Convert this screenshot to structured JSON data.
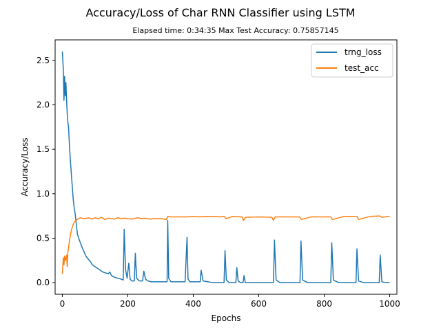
{
  "chart_data": {
    "type": "line",
    "title": "Accuracy/Loss of Char RNN Classifier using LSTM",
    "subtitle": "Elapsed time: 0:34:35   Max Test Accuracy: 0.75857145",
    "xlabel": "Epochs",
    "ylabel": "Accuracy/Loss",
    "xlim": [
      -22,
      1022
    ],
    "ylim": [
      -0.13,
      2.73
    ],
    "xticks": [
      0,
      200,
      400,
      600,
      800,
      1000
    ],
    "yticks": [
      0.0,
      0.5,
      1.0,
      1.5,
      2.0,
      2.5
    ],
    "xtick_labels": [
      "0",
      "200",
      "400",
      "600",
      "800",
      "1000"
    ],
    "ytick_labels": [
      "0.0",
      "0.5",
      "1.0",
      "1.5",
      "2.0",
      "2.5"
    ],
    "grid": false,
    "legend_position": "top-right",
    "colors": {
      "trng_loss": "#1f77b4",
      "test_acc": "#ff7f0e"
    },
    "series": [
      {
        "name": "trng_loss",
        "x": [
          0,
          3,
          5,
          7,
          9,
          11,
          13,
          15,
          17,
          19,
          21,
          24,
          27,
          30,
          33,
          36,
          39,
          42,
          46,
          50,
          55,
          60,
          66,
          72,
          78,
          85,
          92,
          100,
          108,
          116,
          124,
          132,
          140,
          145,
          150,
          160,
          170,
          180,
          186,
          189,
          193,
          198,
          203,
          207,
          212,
          220,
          223,
          227,
          235,
          245,
          249,
          254,
          262,
          272,
          285,
          300,
          313,
          320,
          322,
          325,
          332,
          345,
          360,
          375,
          381,
          384,
          390,
          400,
          415,
          421,
          424,
          430,
          445,
          460,
          480,
          494,
          497,
          501,
          510,
          520,
          530,
          533,
          537,
          545,
          552,
          555,
          559,
          570,
          600,
          620,
          640,
          645,
          648,
          653,
          665,
          690,
          720,
          726,
          729,
          734,
          750,
          780,
          810,
          820,
          823,
          828,
          845,
          870,
          890,
          897,
          900,
          905,
          920,
          950,
          968,
          971,
          976,
          990,
          1000
        ],
        "values": [
          2.6,
          2.4,
          2.05,
          2.32,
          2.1,
          2.25,
          2.05,
          1.9,
          1.8,
          1.75,
          1.6,
          1.4,
          1.25,
          1.1,
          0.95,
          0.85,
          0.78,
          0.68,
          0.55,
          0.5,
          0.45,
          0.4,
          0.35,
          0.3,
          0.27,
          0.24,
          0.2,
          0.18,
          0.16,
          0.14,
          0.12,
          0.11,
          0.1,
          0.12,
          0.08,
          0.06,
          0.05,
          0.04,
          0.03,
          0.6,
          0.15,
          0.05,
          0.22,
          0.04,
          0.02,
          0.02,
          0.33,
          0.05,
          0.02,
          0.02,
          0.13,
          0.04,
          0.02,
          0.01,
          0.01,
          0.01,
          0.01,
          0.01,
          0.7,
          0.05,
          0.01,
          0.01,
          0.01,
          0.01,
          0.51,
          0.04,
          0.01,
          0.01,
          0.01,
          0.01,
          0.14,
          0.02,
          0.01,
          0.0,
          0.0,
          0.0,
          0.36,
          0.03,
          0.0,
          0.0,
          0.0,
          0.17,
          0.02,
          0.0,
          0.0,
          0.08,
          0.0,
          0.0,
          0.0,
          0.0,
          0.0,
          0.0,
          0.48,
          0.03,
          0.0,
          0.0,
          0.0,
          0.0,
          0.47,
          0.03,
          0.0,
          0.0,
          0.0,
          0.0,
          0.45,
          0.03,
          0.0,
          0.0,
          0.0,
          0.0,
          0.38,
          0.02,
          0.0,
          0.0,
          0.0,
          0.31,
          0.01,
          0.0,
          0.0
        ]
      },
      {
        "name": "test_acc",
        "x": [
          0,
          3,
          5,
          7,
          9,
          11,
          13,
          15,
          17,
          20,
          23,
          26,
          30,
          34,
          38,
          42,
          46,
          50,
          55,
          60,
          70,
          80,
          90,
          100,
          110,
          120,
          130,
          140,
          150,
          160,
          170,
          180,
          190,
          200,
          210,
          220,
          230,
          240,
          250,
          260,
          270,
          280,
          290,
          300,
          310,
          318,
          322,
          330,
          350,
          380,
          400,
          420,
          440,
          460,
          480,
          495,
          500,
          520,
          550,
          553,
          560,
          600,
          640,
          645,
          650,
          700,
          725,
          730,
          760,
          800,
          820,
          825,
          860,
          900,
          905,
          940,
          970,
          975,
          1000
        ],
        "values": [
          0.1,
          0.28,
          0.2,
          0.3,
          0.25,
          0.27,
          0.31,
          0.18,
          0.35,
          0.42,
          0.5,
          0.56,
          0.62,
          0.66,
          0.69,
          0.7,
          0.71,
          0.72,
          0.73,
          0.725,
          0.72,
          0.73,
          0.715,
          0.73,
          0.72,
          0.735,
          0.71,
          0.725,
          0.72,
          0.715,
          0.73,
          0.72,
          0.725,
          0.72,
          0.715,
          0.72,
          0.73,
          0.72,
          0.725,
          0.72,
          0.715,
          0.72,
          0.72,
          0.72,
          0.715,
          0.71,
          0.745,
          0.74,
          0.74,
          0.74,
          0.745,
          0.74,
          0.745,
          0.745,
          0.74,
          0.745,
          0.72,
          0.745,
          0.74,
          0.7,
          0.735,
          0.74,
          0.735,
          0.7,
          0.74,
          0.74,
          0.74,
          0.71,
          0.74,
          0.74,
          0.74,
          0.71,
          0.745,
          0.745,
          0.71,
          0.745,
          0.75,
          0.735,
          0.745
        ]
      }
    ]
  }
}
